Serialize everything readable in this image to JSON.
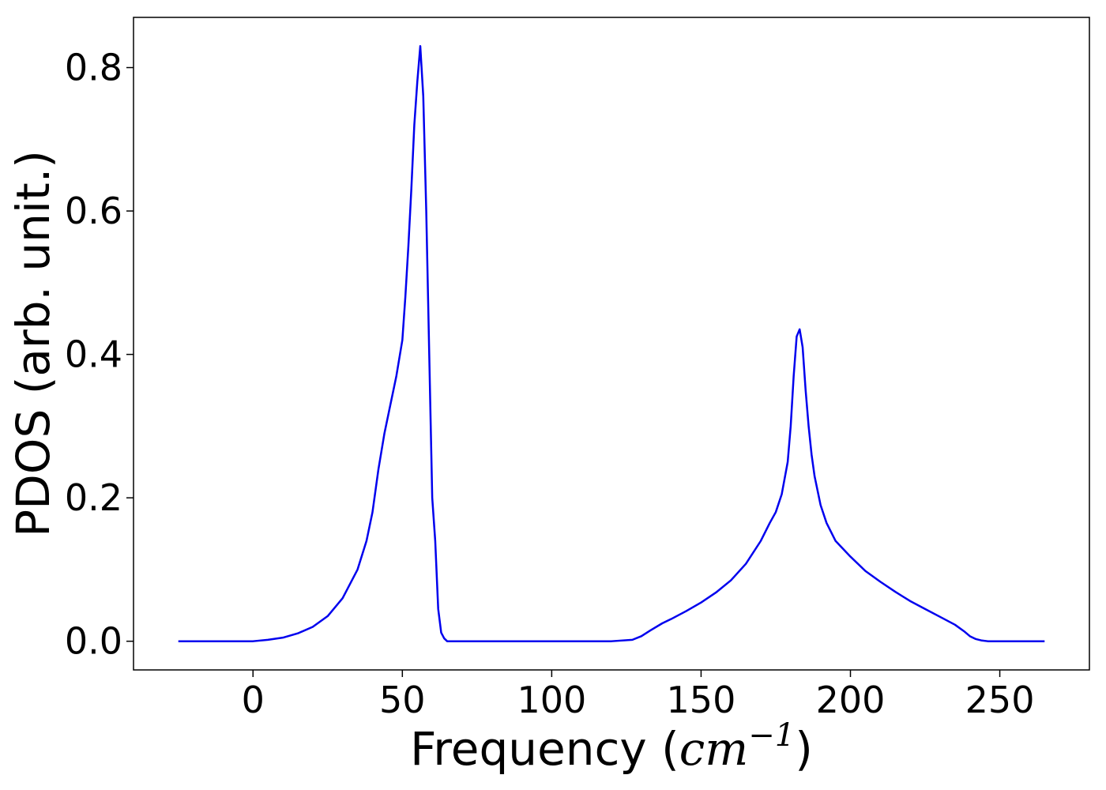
{
  "chart_data": {
    "type": "line",
    "xlabel_prefix": "Frequency (",
    "xlabel_unit": "cm",
    "xlabel_exponent": "−1",
    "xlabel_suffix": ")",
    "ylabel": "PDOS (arb. unit.)",
    "xlim": [
      -40,
      280
    ],
    "ylim": [
      -0.04,
      0.87
    ],
    "x_ticks": [
      0,
      50,
      100,
      150,
      200,
      250
    ],
    "x_tick_labels": [
      "0",
      "50",
      "100",
      "150",
      "200",
      "250"
    ],
    "y_ticks": [
      0.0,
      0.2,
      0.4,
      0.6,
      0.8
    ],
    "y_tick_labels": [
      "0.0",
      "0.2",
      "0.4",
      "0.6",
      "0.8"
    ],
    "grid": false,
    "legend": "none",
    "series": [
      {
        "color": "#0000ee",
        "x": [
          -25,
          0,
          5,
          10,
          15,
          20,
          25,
          30,
          35,
          38,
          40,
          42,
          44,
          46,
          48,
          50,
          51,
          52,
          53,
          54,
          55,
          56,
          57,
          58,
          59,
          60,
          61,
          62,
          63,
          64,
          65,
          66,
          67,
          68,
          70,
          80,
          100,
          120,
          127,
          130,
          133,
          137,
          140,
          145,
          150,
          155,
          160,
          165,
          170,
          173,
          175,
          177,
          179,
          180,
          181,
          182,
          183,
          184,
          185,
          186,
          187,
          188,
          190,
          192,
          195,
          200,
          205,
          210,
          215,
          220,
          225,
          230,
          235,
          238,
          240,
          242,
          244,
          246,
          250,
          265
        ],
        "y": [
          0.0,
          0.0,
          0.002,
          0.005,
          0.011,
          0.02,
          0.035,
          0.06,
          0.1,
          0.14,
          0.18,
          0.24,
          0.29,
          0.33,
          0.37,
          0.42,
          0.48,
          0.55,
          0.63,
          0.72,
          0.78,
          0.83,
          0.76,
          0.6,
          0.4,
          0.2,
          0.14,
          0.045,
          0.012,
          0.004,
          0.0,
          0.0,
          0.0,
          0.0,
          0.0,
          0.0,
          0.0,
          0.0,
          0.002,
          0.007,
          0.015,
          0.025,
          0.031,
          0.042,
          0.054,
          0.068,
          0.085,
          0.108,
          0.14,
          0.165,
          0.18,
          0.205,
          0.25,
          0.3,
          0.37,
          0.425,
          0.435,
          0.41,
          0.35,
          0.3,
          0.26,
          0.23,
          0.19,
          0.165,
          0.14,
          0.118,
          0.098,
          0.083,
          0.069,
          0.056,
          0.045,
          0.034,
          0.023,
          0.014,
          0.007,
          0.003,
          0.001,
          0.0,
          0.0,
          0.0
        ]
      }
    ]
  }
}
